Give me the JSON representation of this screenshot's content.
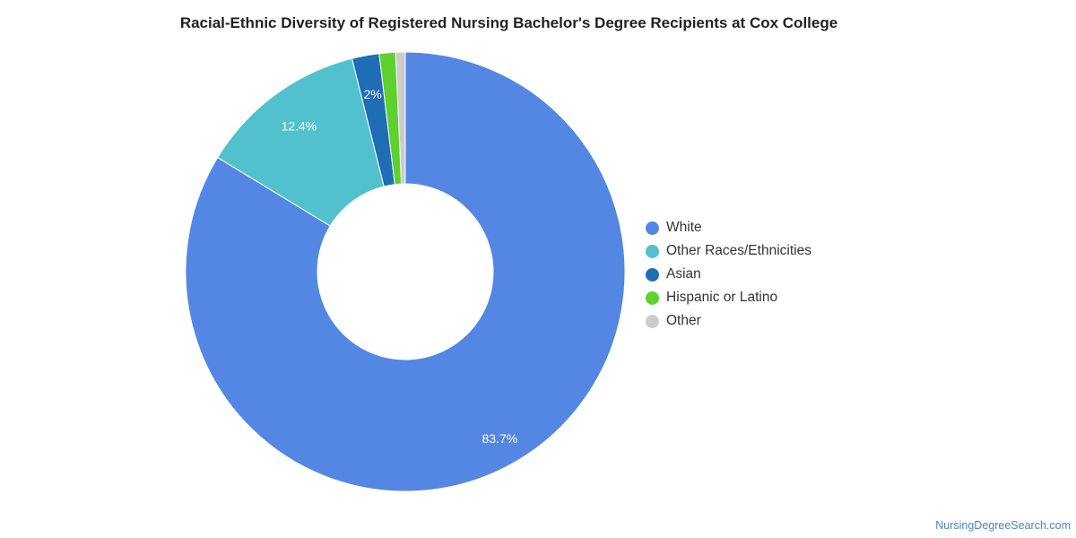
{
  "chart_data": {
    "type": "pie",
    "title": "Racial-Ethnic Diversity of Registered Nursing Bachelor's Degree Recipients at Cox College",
    "donut": true,
    "legend_position": "right",
    "slices": [
      {
        "name": "White",
        "value": 83.7,
        "label": "83.7%",
        "color": "#5387e3"
      },
      {
        "name": "Other Races/Ethnicities",
        "value": 12.4,
        "label": "12.4%",
        "color": "#51c1ce"
      },
      {
        "name": "Asian",
        "value": 2.0,
        "label": "2%",
        "color": "#1f6db5"
      },
      {
        "name": "Hispanic or Latino",
        "value": 1.2,
        "label": "",
        "color": "#5ed12f"
      },
      {
        "name": "Other",
        "value": 0.7,
        "label": "",
        "color": "#cccccc"
      }
    ]
  },
  "footer": {
    "source": "NursingDegreeSearch.com"
  }
}
